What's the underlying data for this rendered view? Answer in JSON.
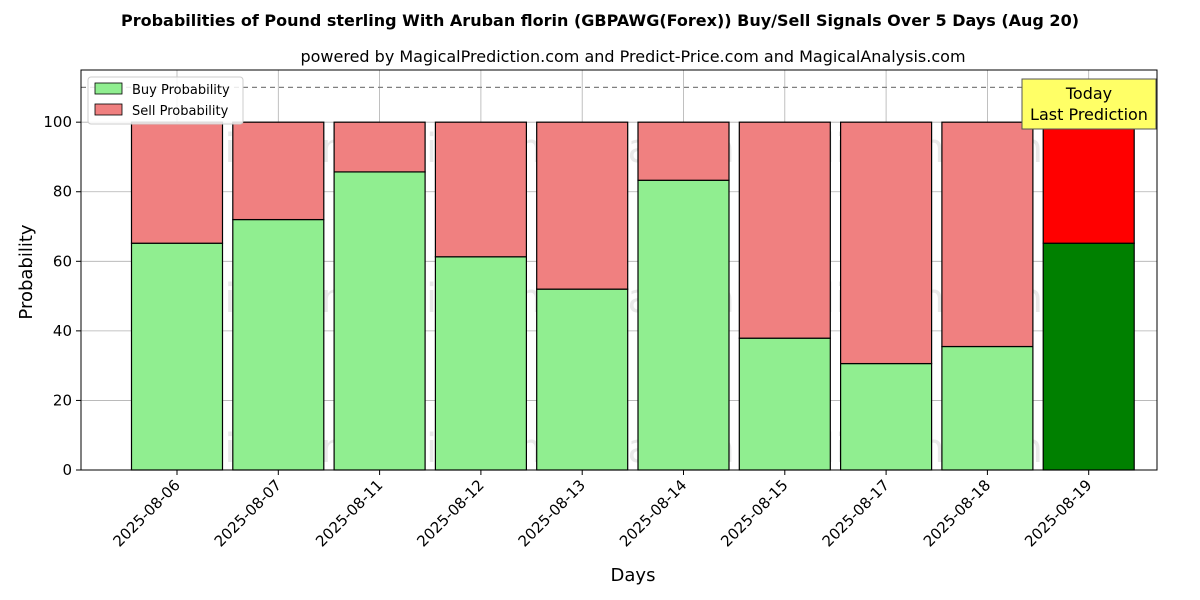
{
  "chart_data": {
    "type": "bar",
    "stacked": true,
    "title": "Probabilities of Pound sterling With Aruban florin (GBPAWG(Forex)) Buy/Sell Signals Over 5 Days (Aug 20)",
    "subtitle": "powered by MagicalPrediction.com and Predict-Price.com and MagicalAnalysis.com",
    "xlabel": "Days",
    "ylabel": "Probability",
    "ylim": [
      0,
      115
    ],
    "yticks": [
      0,
      20,
      40,
      60,
      80,
      100
    ],
    "grid": true,
    "legend_position": "top-left",
    "reference_line": 110,
    "categories": [
      "2025-08-06",
      "2025-08-07",
      "2025-08-11",
      "2025-08-12",
      "2025-08-13",
      "2025-08-14",
      "2025-08-15",
      "2025-08-17",
      "2025-08-18",
      "2025-08-19"
    ],
    "series": [
      {
        "name": "Buy Probability",
        "color": "#90ee90",
        "highlight_color": "#008000",
        "values": [
          65.2,
          72.0,
          85.7,
          61.3,
          52.0,
          83.3,
          37.9,
          30.6,
          35.5,
          65.2
        ]
      },
      {
        "name": "Sell Probability",
        "color": "#f08080",
        "highlight_color": "#ff0000",
        "values": [
          34.8,
          28.0,
          14.3,
          38.7,
          48.0,
          16.7,
          62.1,
          69.4,
          64.5,
          34.8
        ]
      }
    ],
    "highlight_index": 9,
    "annotation": {
      "line1": "Today",
      "line2": "Last Prediction",
      "bg_color": "#ffff66"
    },
    "watermarks": [
      "MagicalAnalysis.com",
      "MagicalPrediction.com",
      "MagicalAnalysis.com",
      "MagicalPrediction.com",
      "MagicalAnalysis.com",
      "MagicalPrediction.com"
    ]
  }
}
